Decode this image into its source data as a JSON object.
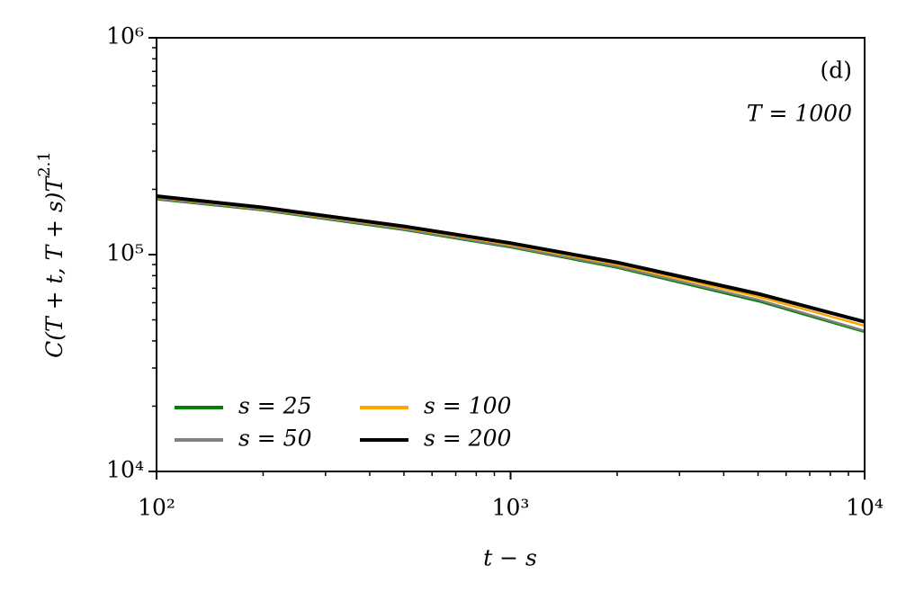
{
  "chart_data": {
    "type": "line",
    "xlabel": "t − s",
    "ylabel": "C(T + t, T + s)T",
    "ylabel_exponent": "2.1",
    "annotations": [
      "(d)",
      "T = 1000"
    ],
    "log_x": true,
    "log_y": true,
    "grid": false,
    "legend": "lower left",
    "x": [
      100,
      200,
      500,
      1000,
      2000,
      5000,
      10000
    ],
    "series": [
      {
        "name": "s = 25",
        "color": "#008000",
        "values": [
          180000,
          160000,
          130000,
          108000,
          87000,
          61000,
          44000
        ]
      },
      {
        "name": "s = 50",
        "color": "#808080",
        "values": [
          181000,
          161000,
          131000,
          109000,
          88000,
          62000,
          44500
        ]
      },
      {
        "name": "s = 100",
        "color": "#ffa500",
        "values": [
          184000,
          163000,
          133000,
          111000,
          90000,
          64000,
          47000
        ]
      },
      {
        "name": "s = 200",
        "color": "#000000",
        "values": [
          186000,
          165000,
          135000,
          113000,
          92000,
          66000,
          49000
        ]
      }
    ],
    "xlim": [
      100,
      10000
    ],
    "ylim": [
      10000,
      1000000
    ],
    "xticks": [
      {
        "value": 100,
        "label": "10²"
      },
      {
        "value": 1000,
        "label": "10³"
      },
      {
        "value": 10000,
        "label": "10⁴"
      }
    ],
    "yticks": [
      {
        "value": 10000,
        "label": "10⁴"
      },
      {
        "value": 100000,
        "label": "10⁵"
      },
      {
        "value": 1000000,
        "label": "10⁶"
      }
    ]
  }
}
